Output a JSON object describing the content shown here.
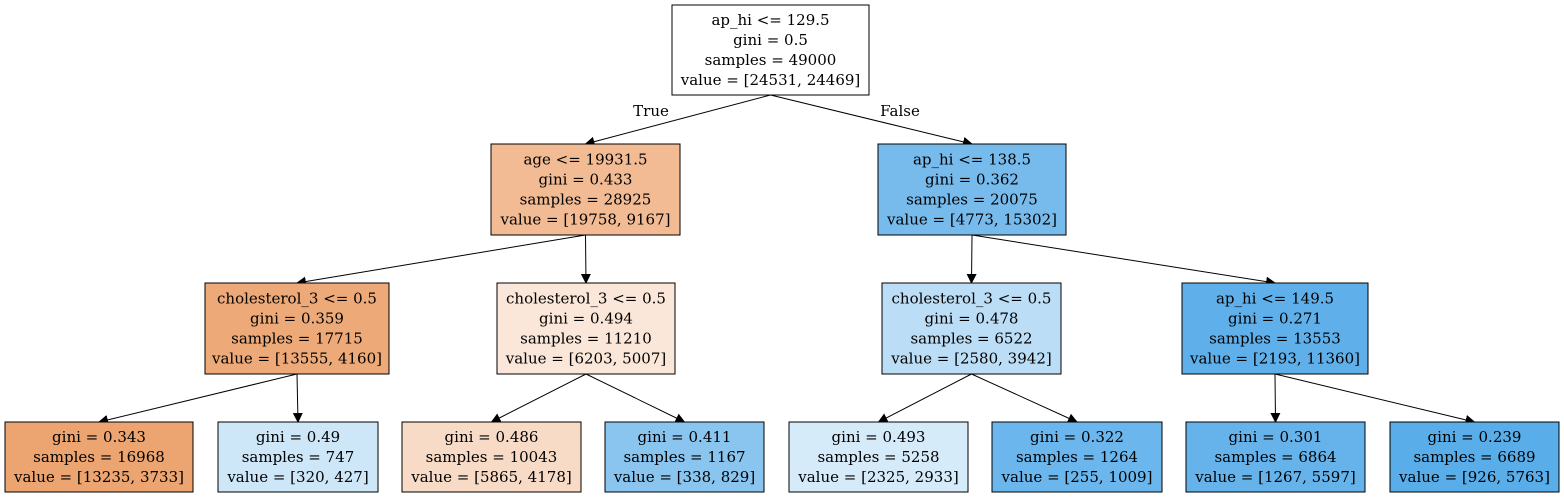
{
  "tree": {
    "nodes": [
      {
        "id": "n0",
        "lines": [
          "ap_hi <= 129.5",
          "gini = 0.5",
          "samples = 49000",
          "value = [24531, 24469]"
        ],
        "fill": "#ffffff"
      },
      {
        "id": "n1",
        "lines": [
          "age <= 19931.5",
          "gini = 0.433",
          "samples = 28925",
          "value = [19758, 9167]"
        ],
        "fill": "#f2bb94"
      },
      {
        "id": "n2",
        "lines": [
          "ap_hi <= 138.5",
          "gini = 0.362",
          "samples = 20075",
          "value = [4773, 15302]"
        ],
        "fill": "#77bbed"
      },
      {
        "id": "n3",
        "lines": [
          "cholesterol_3 <= 0.5",
          "gini = 0.359",
          "samples = 17715",
          "value = [13555, 4160]"
        ],
        "fill": "#eda977"
      },
      {
        "id": "n4",
        "lines": [
          "cholesterol_3 <= 0.5",
          "gini = 0.494",
          "samples = 11210",
          "value = [6203, 5007]"
        ],
        "fill": "#fbe7d9"
      },
      {
        "id": "n5",
        "lines": [
          "cholesterol_3 <= 0.5",
          "gini = 0.478",
          "samples = 6522",
          "value = [2580, 3942]"
        ],
        "fill": "#bbdef6"
      },
      {
        "id": "n6",
        "lines": [
          "ap_hi <= 149.5",
          "gini = 0.271",
          "samples = 13553",
          "value = [2193, 11360]"
        ],
        "fill": "#5fb0ea"
      },
      {
        "id": "n7",
        "lines": [
          "gini = 0.343",
          "samples = 16968",
          "value = [13235, 3733]"
        ],
        "fill": "#eca470"
      },
      {
        "id": "n8",
        "lines": [
          "gini = 0.49",
          "samples = 747",
          "value = [320, 427]"
        ],
        "fill": "#cde6f8"
      },
      {
        "id": "n9",
        "lines": [
          "gini = 0.486",
          "samples = 10043",
          "value = [5865, 4178]"
        ],
        "fill": "#f8dbc6"
      },
      {
        "id": "n10",
        "lines": [
          "gini = 0.411",
          "samples = 1167",
          "value = [338, 829]"
        ],
        "fill": "#8ac5f0"
      },
      {
        "id": "n11",
        "lines": [
          "gini = 0.493",
          "samples = 5258",
          "value = [2325, 2933]"
        ],
        "fill": "#d6ebfa"
      },
      {
        "id": "n12",
        "lines": [
          "gini = 0.322",
          "samples = 1264",
          "value = [255, 1009]"
        ],
        "fill": "#6bb6ec"
      },
      {
        "id": "n13",
        "lines": [
          "gini = 0.301",
          "samples = 6864",
          "value = [1267, 5597]"
        ],
        "fill": "#66b3eb"
      },
      {
        "id": "n14",
        "lines": [
          "gini = 0.239",
          "samples = 6689",
          "value = [926, 5763]"
        ],
        "fill": "#59ade9"
      }
    ],
    "edges": [
      {
        "from": "n0",
        "to": "n1",
        "label": "True"
      },
      {
        "from": "n0",
        "to": "n2",
        "label": "False"
      },
      {
        "from": "n1",
        "to": "n3",
        "label": ""
      },
      {
        "from": "n1",
        "to": "n4",
        "label": ""
      },
      {
        "from": "n2",
        "to": "n5",
        "label": ""
      },
      {
        "from": "n2",
        "to": "n6",
        "label": ""
      },
      {
        "from": "n3",
        "to": "n7",
        "label": ""
      },
      {
        "from": "n3",
        "to": "n8",
        "label": ""
      },
      {
        "from": "n4",
        "to": "n9",
        "label": ""
      },
      {
        "from": "n4",
        "to": "n10",
        "label": ""
      },
      {
        "from": "n5",
        "to": "n11",
        "label": ""
      },
      {
        "from": "n5",
        "to": "n12",
        "label": ""
      },
      {
        "from": "n6",
        "to": "n13",
        "label": ""
      },
      {
        "from": "n6",
        "to": "n14",
        "label": ""
      }
    ]
  }
}
